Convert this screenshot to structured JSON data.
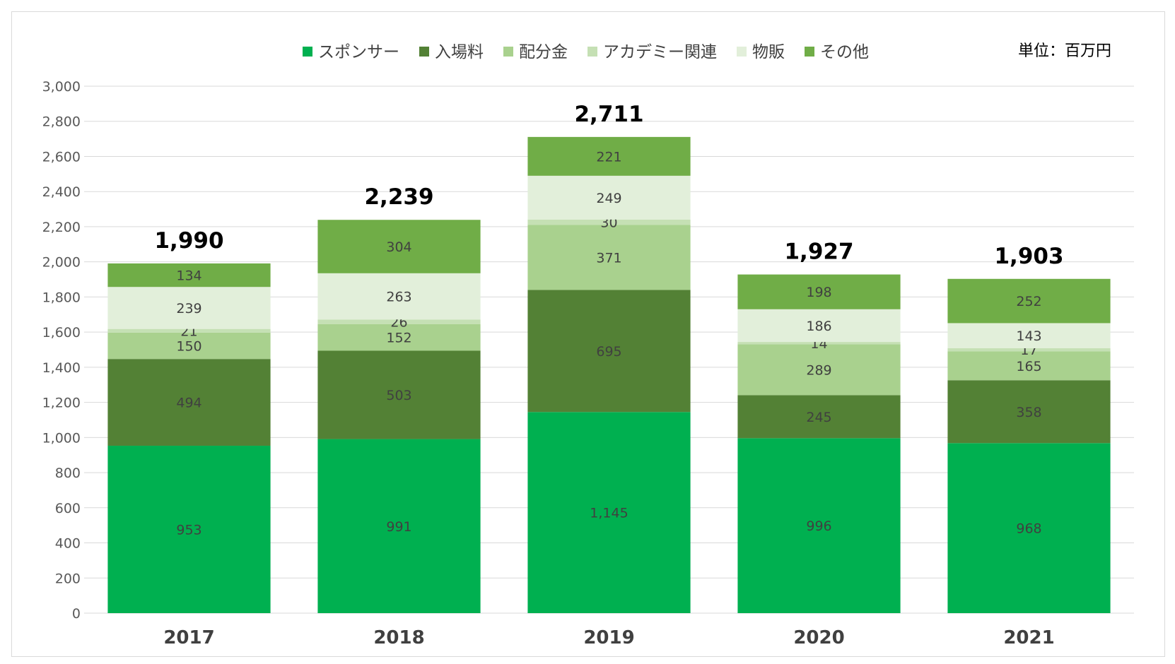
{
  "chart_data": {
    "type": "bar",
    "stacked": true,
    "unit_label": "単位：百万円",
    "categories": [
      "2017",
      "2018",
      "2019",
      "2020",
      "2021"
    ],
    "series": [
      {
        "name": "スポンサー",
        "color": "#00b050",
        "values": [
          953,
          991,
          1145,
          996,
          968
        ]
      },
      {
        "name": "入場料",
        "color": "#538135",
        "values": [
          494,
          503,
          695,
          245,
          358
        ]
      },
      {
        "name": "配分金",
        "color": "#a9d18e",
        "values": [
          150,
          152,
          371,
          289,
          165
        ]
      },
      {
        "name": "アカデミー関連",
        "color": "#c5e0b4",
        "values": [
          21,
          26,
          30,
          14,
          17
        ]
      },
      {
        "name": "物販",
        "color": "#e2efda",
        "values": [
          239,
          263,
          249,
          186,
          143
        ]
      },
      {
        "name": "その他",
        "color": "#70ad47",
        "values": [
          134,
          304,
          221,
          198,
          252
        ]
      }
    ],
    "totals": [
      "1,990",
      "2,239",
      "2,711",
      "1,927",
      "1,903"
    ],
    "ylim": [
      0,
      3000
    ],
    "yticks": [
      "0",
      "200",
      "400",
      "600",
      "800",
      "1,000",
      "1,200",
      "1,400",
      "1,600",
      "1,800",
      "2,000",
      "2,200",
      "2,400",
      "2,600",
      "2,800",
      "3,000"
    ],
    "grid": true,
    "legend_position": "top"
  }
}
